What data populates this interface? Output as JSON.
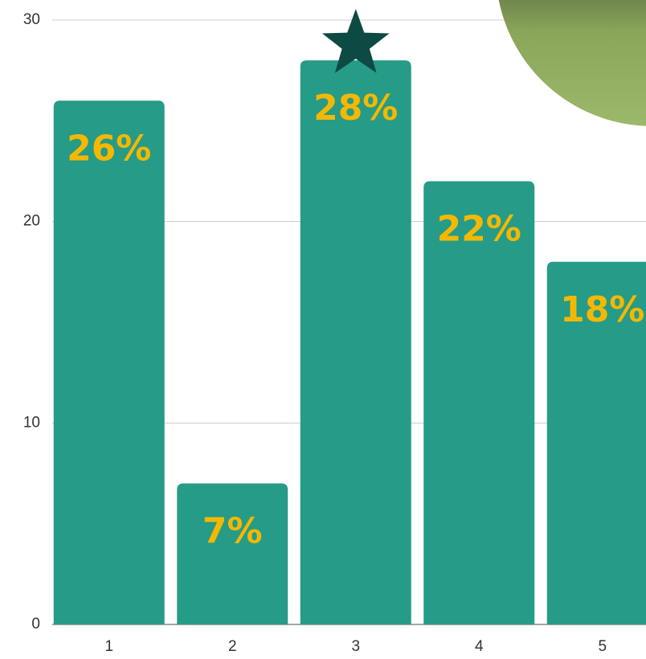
{
  "chart_data": {
    "type": "bar",
    "categories": [
      "1",
      "2",
      "3",
      "4",
      "5"
    ],
    "values": [
      26,
      7,
      28,
      22,
      18
    ],
    "value_labels": [
      "26%",
      "7%",
      "28%",
      "22%",
      "18%"
    ],
    "color": "#269b87",
    "label_color": "#f5b800",
    "ylim": [
      0,
      30
    ],
    "yticks": [
      0,
      10,
      20,
      30
    ],
    "grid": true
  }
}
